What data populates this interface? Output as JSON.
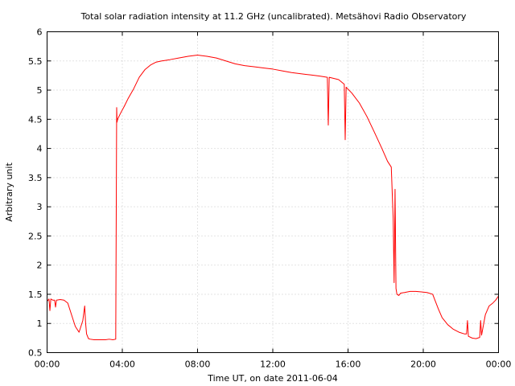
{
  "chart_data": {
    "type": "line",
    "title": "Total solar radiation intensity at 11.2 GHz (uncalibrated). Metsähovi Radio Observatory",
    "xlabel": "Time UT, on date 2011-06-04",
    "ylabel": "Arbitrary unit",
    "xlim": [
      0,
      24
    ],
    "ylim": [
      0.5,
      6
    ],
    "grid": true,
    "x_ticks": [
      {
        "value": 0,
        "label": "00:00"
      },
      {
        "value": 4,
        "label": "04:00"
      },
      {
        "value": 8,
        "label": "08:00"
      },
      {
        "value": 12,
        "label": "12:00"
      },
      {
        "value": 16,
        "label": "16:00"
      },
      {
        "value": 20,
        "label": "20:00"
      },
      {
        "value": 24,
        "label": "00:00"
      }
    ],
    "y_ticks": [
      {
        "value": 0.5,
        "label": "0.5"
      },
      {
        "value": 1,
        "label": "1"
      },
      {
        "value": 1.5,
        "label": "1.5"
      },
      {
        "value": 2,
        "label": "2"
      },
      {
        "value": 2.5,
        "label": "2.5"
      },
      {
        "value": 3,
        "label": "3"
      },
      {
        "value": 3.5,
        "label": "3.5"
      },
      {
        "value": 4,
        "label": "4"
      },
      {
        "value": 4.5,
        "label": "4.5"
      },
      {
        "value": 5,
        "label": "5"
      },
      {
        "value": 5.5,
        "label": "5.5"
      },
      {
        "value": 6,
        "label": "6"
      }
    ],
    "series": [
      {
        "color": "#ff0000",
        "x": [
          0.0,
          0.1,
          0.15,
          0.2,
          0.3,
          0.4,
          0.45,
          0.5,
          0.7,
          0.9,
          1.1,
          1.3,
          1.5,
          1.7,
          1.9,
          2.0,
          2.05,
          2.1,
          2.15,
          2.2,
          2.3,
          2.5,
          2.7,
          2.9,
          3.1,
          3.3,
          3.5,
          3.65,
          3.7,
          3.72,
          3.75,
          3.9,
          4.1,
          4.3,
          4.6,
          4.9,
          5.2,
          5.5,
          5.8,
          6.1,
          6.5,
          7.0,
          7.5,
          8.0,
          8.5,
          9.0,
          9.5,
          10.0,
          10.5,
          11.0,
          11.5,
          12.0,
          12.5,
          13.0,
          13.5,
          14.0,
          14.5,
          14.9,
          14.95,
          15.0,
          15.5,
          15.8,
          15.85,
          15.9,
          16.2,
          16.6,
          17.0,
          17.4,
          17.8,
          18.1,
          18.3,
          18.4,
          18.45,
          18.5,
          18.55,
          18.6,
          18.7,
          18.8,
          19.0,
          19.3,
          19.6,
          19.9,
          20.2,
          20.5,
          20.8,
          21.0,
          21.3,
          21.6,
          21.9,
          22.2,
          22.3,
          22.35,
          22.4,
          22.6,
          22.8,
          23.0,
          23.05,
          23.1,
          23.3,
          23.5,
          23.7,
          23.85,
          24.0
        ],
        "y": [
          1.38,
          1.42,
          1.22,
          1.42,
          1.4,
          1.4,
          1.28,
          1.4,
          1.41,
          1.4,
          1.35,
          1.15,
          0.95,
          0.85,
          1.05,
          1.3,
          1.0,
          0.82,
          0.78,
          0.74,
          0.73,
          0.72,
          0.72,
          0.72,
          0.72,
          0.73,
          0.72,
          0.73,
          4.7,
          4.45,
          4.5,
          4.6,
          4.72,
          4.85,
          5.02,
          5.22,
          5.35,
          5.43,
          5.48,
          5.5,
          5.52,
          5.55,
          5.58,
          5.6,
          5.58,
          5.55,
          5.5,
          5.45,
          5.42,
          5.4,
          5.38,
          5.36,
          5.33,
          5.3,
          5.28,
          5.26,
          5.24,
          5.22,
          4.4,
          5.22,
          5.18,
          5.1,
          4.15,
          5.05,
          4.95,
          4.78,
          4.55,
          4.28,
          4.0,
          3.78,
          3.68,
          2.8,
          1.7,
          3.3,
          1.6,
          1.5,
          1.48,
          1.52,
          1.53,
          1.55,
          1.55,
          1.54,
          1.53,
          1.5,
          1.25,
          1.1,
          0.98,
          0.9,
          0.85,
          0.82,
          0.82,
          1.05,
          0.78,
          0.75,
          0.74,
          0.76,
          1.05,
          0.8,
          1.15,
          1.3,
          1.35,
          1.4,
          1.47
        ]
      }
    ]
  }
}
